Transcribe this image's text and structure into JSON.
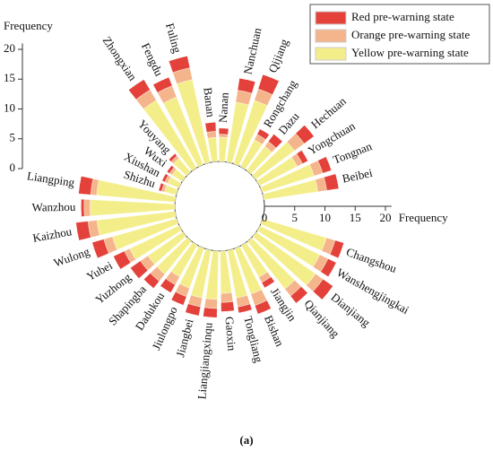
{
  "chart_data": {
    "type": "radial-stacked-bar",
    "caption": "(a)",
    "radial_axis_label": "Frequency",
    "categories": [
      "Beibei",
      "Tongnan",
      "Yongchuan",
      "Hechuan",
      "Dazu",
      "Rongchang",
      "Qijiang",
      "Nanchuan",
      "Nanan",
      "Banan",
      "Fuling",
      "Fengdu",
      "Zhongxian",
      "Youyang",
      "Wuxi",
      "Xiushan",
      "Shizhu",
      "Liangping",
      "Wanzhou",
      "Kaizhou",
      "Wulong",
      "Yubei",
      "Yuzhong",
      "Shapingba",
      "Dadukou",
      "Jiulongpo",
      "Jiangbei",
      "Liangjiangxinqu",
      "Gaoxin",
      "Tongliang",
      "Bishan",
      "Jiangjin",
      "Qianjiang",
      "Dianjiang",
      "Wanshengjingkai",
      "Changshou"
    ],
    "series": [
      {
        "name": "Yellow pre-warning state",
        "color": "#f4ee8a",
        "values": [
          9,
          9,
          7,
          8,
          5,
          5,
          11,
          10,
          4,
          4,
          14,
          12,
          13,
          3,
          2,
          2,
          2,
          13,
          14,
          13,
          11,
          9,
          7,
          7,
          6,
          7,
          8,
          8,
          7,
          8,
          8,
          6,
          10,
          12,
          11,
          11
        ]
      },
      {
        "name": "Orange pre-warning state",
        "color": "#f5b58c",
        "values": [
          1.5,
          1.5,
          1,
          2,
          1,
          1,
          2,
          2,
          0.5,
          1,
          2,
          2,
          2,
          0.5,
          0.5,
          0.5,
          0.5,
          1,
          1,
          1.5,
          1.5,
          1,
          1.5,
          1.5,
          1.5,
          1.5,
          1.5,
          1.5,
          1.5,
          1.5,
          2,
          1,
          1.5,
          1.5,
          1.5,
          1.5
        ]
      },
      {
        "name": "Red pre-warning state",
        "color": "#e3413a",
        "values": [
          2,
          1.5,
          1,
          2,
          1.5,
          1,
          2.5,
          2,
          1,
          1.5,
          2,
          1.5,
          2,
          0.5,
          0.5,
          0.5,
          0.5,
          2,
          0.5,
          2,
          2,
          2,
          2,
          1.5,
          1.5,
          1.5,
          1.5,
          1.5,
          1.5,
          1,
          1.5,
          1,
          1.5,
          2,
          1.5,
          1.5
        ]
      }
    ],
    "rlim": [
      0,
      21
    ],
    "rticks": [
      0,
      5,
      10,
      15,
      20
    ]
  }
}
